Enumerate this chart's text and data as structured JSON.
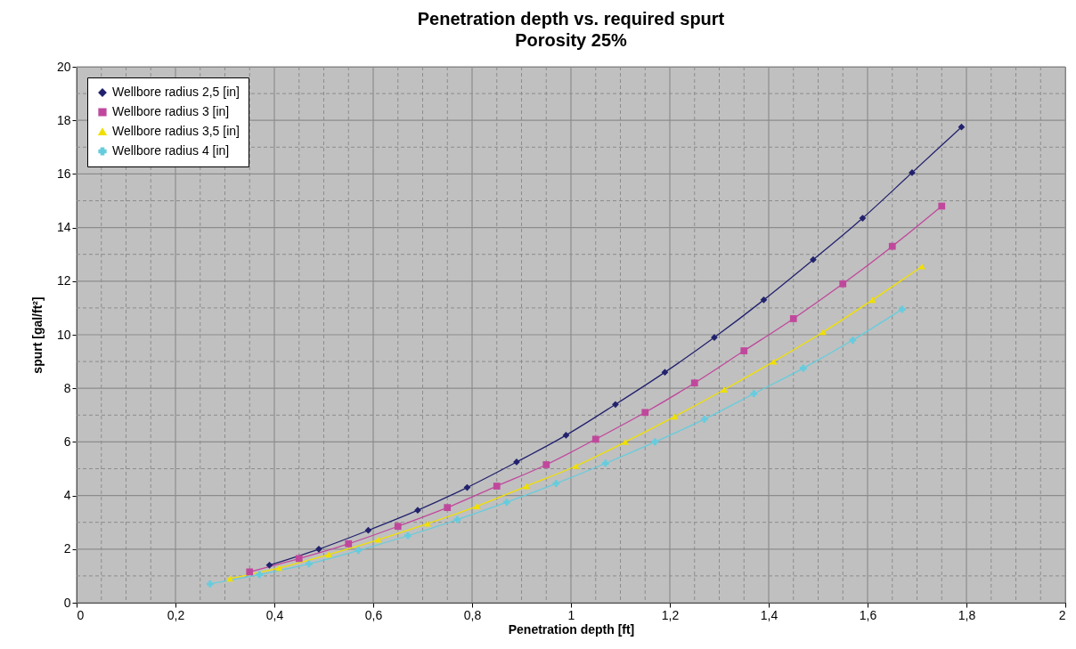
{
  "chart_data": {
    "type": "line",
    "title": "Penetration depth vs. required spurt",
    "subtitle": "Porosity 25%",
    "xlabel": "Penetration depth [ft]",
    "ylabel": "spurt [gal/ft²]",
    "xlim": [
      0,
      2
    ],
    "xticks": [
      {
        "value": 0,
        "label": "0"
      },
      {
        "value": 0.2,
        "label": "0,2"
      },
      {
        "value": 0.4,
        "label": "0,4"
      },
      {
        "value": 0.6,
        "label": "0,6"
      },
      {
        "value": 0.8,
        "label": "0,8"
      },
      {
        "value": 1,
        "label": "1"
      },
      {
        "value": 1.2,
        "label": "1,2"
      },
      {
        "value": 1.4,
        "label": "1,4"
      },
      {
        "value": 1.6,
        "label": "1,6"
      },
      {
        "value": 1.8,
        "label": "1,8"
      },
      {
        "value": 2,
        "label": "2"
      }
    ],
    "ylim": [
      0,
      20
    ],
    "yticks": [
      0,
      2,
      4,
      6,
      8,
      10,
      12,
      14,
      16,
      18,
      20
    ],
    "grid": true,
    "legend": "top left",
    "line_style": "solid",
    "series": [
      {
        "name": "Wellbore radius 2,5 [in]",
        "color": "#22226e",
        "marker": "diamond",
        "x": [
          0.39,
          0.49,
          0.59,
          0.69,
          0.79,
          0.89,
          0.99,
          1.09,
          1.19,
          1.29,
          1.39,
          1.49,
          1.59,
          1.69,
          1.79
        ],
        "values": [
          1.4,
          2.0,
          2.7,
          3.45,
          4.3,
          5.25,
          6.25,
          7.4,
          8.6,
          9.9,
          11.3,
          12.8,
          14.35,
          16.05,
          17.75
        ]
      },
      {
        "name": "Wellbore radius 3 [in]",
        "color": "#c0489c",
        "marker": "square",
        "x": [
          0.35,
          0.45,
          0.55,
          0.65,
          0.75,
          0.85,
          0.95,
          1.05,
          1.15,
          1.25,
          1.35,
          1.45,
          1.55,
          1.65,
          1.75
        ],
        "values": [
          1.15,
          1.65,
          2.2,
          2.85,
          3.55,
          4.35,
          5.15,
          6.1,
          7.1,
          8.2,
          9.4,
          10.6,
          11.9,
          13.3,
          14.8
        ]
      },
      {
        "name": "Wellbore radius 3,5 [in]",
        "color": "#f0e000",
        "marker": "triangle",
        "x": [
          0.31,
          0.41,
          0.51,
          0.61,
          0.71,
          0.81,
          0.91,
          1.01,
          1.11,
          1.21,
          1.31,
          1.41,
          1.51,
          1.61,
          1.71
        ],
        "values": [
          0.9,
          1.3,
          1.8,
          2.35,
          2.95,
          3.6,
          4.35,
          5.1,
          6.0,
          6.95,
          7.95,
          9.0,
          10.1,
          11.3,
          12.55
        ]
      },
      {
        "name": "Wellbore radius 4 [in]",
        "color": "#66ccdd",
        "marker": "cross",
        "x": [
          0.27,
          0.37,
          0.47,
          0.57,
          0.67,
          0.77,
          0.87,
          0.97,
          1.07,
          1.17,
          1.27,
          1.37,
          1.47,
          1.57,
          1.67
        ],
        "values": [
          0.7,
          1.05,
          1.45,
          1.95,
          2.5,
          3.1,
          3.75,
          4.45,
          5.2,
          6.0,
          6.85,
          7.8,
          8.75,
          9.8,
          10.95
        ]
      }
    ]
  }
}
